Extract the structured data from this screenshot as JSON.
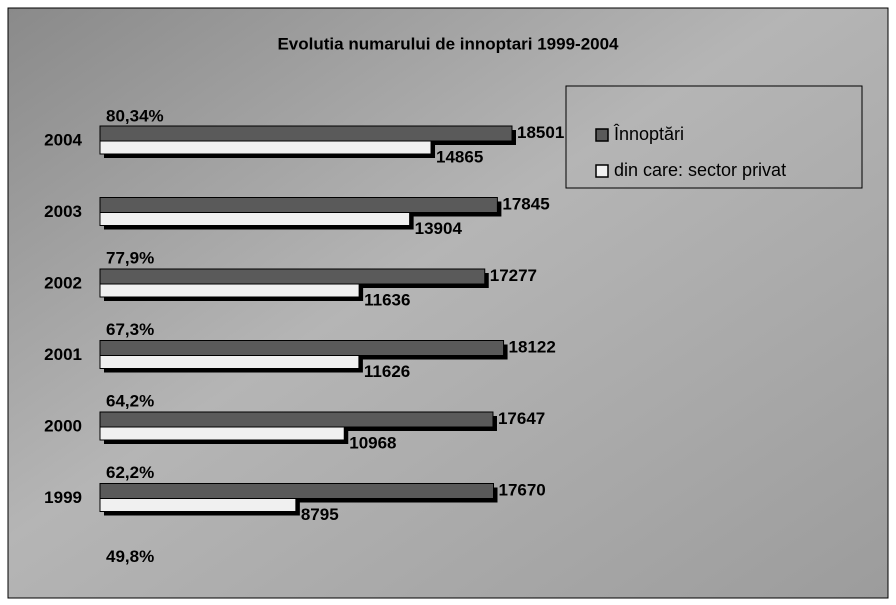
{
  "chart_data": {
    "type": "bar",
    "orientation": "horizontal",
    "title": "Evolutia numarului de innoptari 1999-2004",
    "categories": [
      "2004",
      "2003",
      "2002",
      "2001",
      "2000",
      "1999"
    ],
    "series": [
      {
        "name": "Înnoptări",
        "color": "#5a5a5a",
        "values": [
          18501,
          17845,
          17277,
          18122,
          17647,
          17670
        ]
      },
      {
        "name": "din care: sector privat",
        "color": "#f0f0f0",
        "values": [
          14865,
          13904,
          11636,
          11626,
          10968,
          8795
        ]
      }
    ],
    "annotations": [
      "80,34%",
      "77,9%",
      "67,3%",
      "64,2%",
      "62,2%",
      "49,8%"
    ],
    "legend": "upper right"
  }
}
